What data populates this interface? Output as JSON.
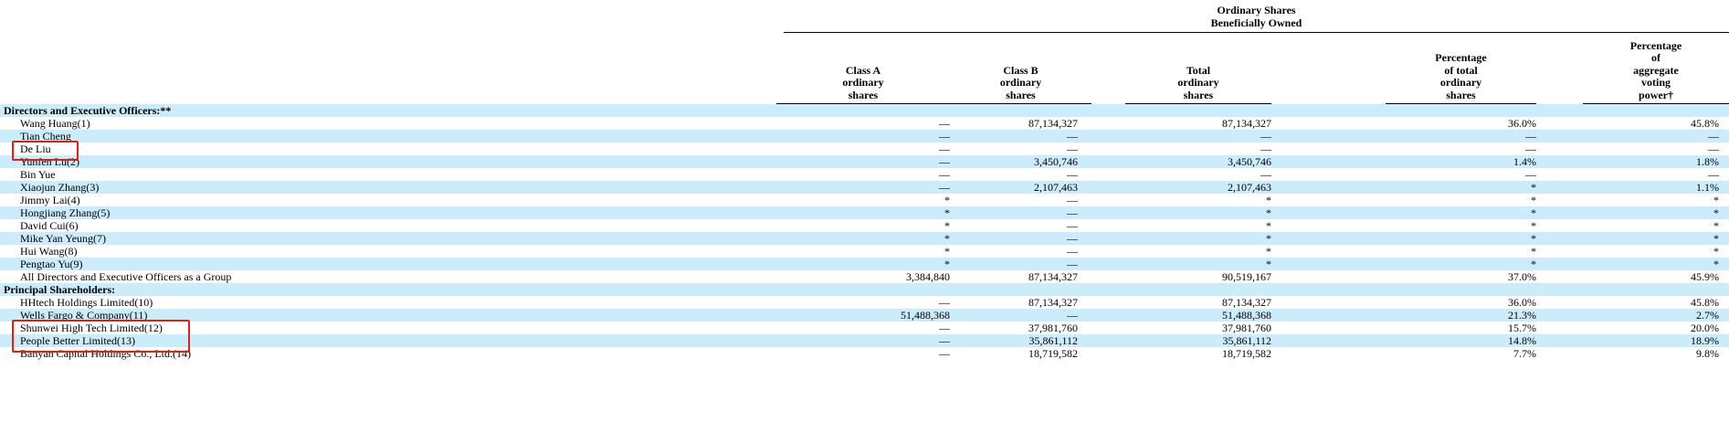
{
  "table": {
    "group_header": "Ordinary Shares\nBeneficially Owned",
    "columns": [
      "Class A\nordinary\nshares",
      "Class B\nordinary\nshares",
      "Total\nordinary\nshares",
      "Percentage\nof total\nordinary\nshares",
      "Percentage\nof\naggregate\nvoting\npower†"
    ],
    "rows": [
      {
        "name": "Directors and Executive Officers:**",
        "section": true,
        "highlighted": false,
        "cells": [
          "",
          "",
          "",
          "",
          ""
        ]
      },
      {
        "name": "Wang Huang(1)",
        "section": false,
        "highlighted": false,
        "cells": [
          "—",
          "87,134,327",
          "87,134,327",
          "36.0%",
          "45.8%"
        ]
      },
      {
        "name": "Tian Cheng",
        "section": false,
        "highlighted": false,
        "cells": [
          "—",
          "—",
          "—",
          "—",
          "—"
        ]
      },
      {
        "name": "De Liu",
        "section": false,
        "highlighted": true,
        "cells": [
          "—",
          "—",
          "—",
          "—",
          "—"
        ]
      },
      {
        "name": "Yunfen Lu(2)",
        "section": false,
        "highlighted": false,
        "cells": [
          "—",
          "3,450,746",
          "3,450,746",
          "1.4%",
          "1.8%"
        ]
      },
      {
        "name": "Bin Yue",
        "section": false,
        "highlighted": false,
        "cells": [
          "—",
          "—",
          "—",
          "—",
          "—"
        ]
      },
      {
        "name": "Xiaojun Zhang(3)",
        "section": false,
        "highlighted": false,
        "cells": [
          "—",
          "2,107,463",
          "2,107,463",
          "*",
          "1.1%"
        ]
      },
      {
        "name": "Jimmy Lai(4)",
        "section": false,
        "highlighted": false,
        "cells": [
          "*",
          "—",
          "*",
          "*",
          "*"
        ]
      },
      {
        "name": "Hongjiang Zhang(5)",
        "section": false,
        "highlighted": false,
        "cells": [
          "*",
          "—",
          "*",
          "*",
          "*"
        ]
      },
      {
        "name": "David Cui(6)",
        "section": false,
        "highlighted": false,
        "cells": [
          "*",
          "—",
          "*",
          "*",
          "*"
        ]
      },
      {
        "name": "Mike Yan Yeung(7)",
        "section": false,
        "highlighted": false,
        "cells": [
          "*",
          "—",
          "*",
          "*",
          "*"
        ]
      },
      {
        "name": "Hui Wang(8)",
        "section": false,
        "highlighted": false,
        "cells": [
          "*",
          "—",
          "*",
          "*",
          "*"
        ]
      },
      {
        "name": "Pengtao Yu(9)",
        "section": false,
        "highlighted": false,
        "cells": [
          "*",
          "—",
          "*",
          "*",
          "*"
        ]
      },
      {
        "name": "All Directors and Executive Officers as a Group",
        "section": false,
        "highlighted": false,
        "cells": [
          "3,384,840",
          "87,134,327",
          "90,519,167",
          "37.0%",
          "45.9%"
        ]
      },
      {
        "name": "Principal Shareholders:",
        "section": true,
        "highlighted": false,
        "cells": [
          "",
          "",
          "",
          "",
          ""
        ]
      },
      {
        "name": "HHtech Holdings Limited(10)",
        "section": false,
        "highlighted": false,
        "cells": [
          "—",
          "87,134,327",
          "87,134,327",
          "36.0%",
          "45.8%"
        ]
      },
      {
        "name": "Wells Fargo & Company(11)",
        "section": false,
        "highlighted": false,
        "cells": [
          "51,488,368",
          "—",
          "51,488,368",
          "21.3%",
          "2.7%"
        ]
      },
      {
        "name": "Shunwei High Tech Limited(12)",
        "section": false,
        "highlighted": true,
        "cells": [
          "—",
          "37,981,760",
          "37,981,760",
          "15.7%",
          "20.0%"
        ]
      },
      {
        "name": "People Better Limited(13)",
        "section": false,
        "highlighted": true,
        "cells": [
          "—",
          "35,861,112",
          "35,861,112",
          "14.8%",
          "18.9%"
        ]
      },
      {
        "name": "Banyan Capital Holdings Co., Ltd.(14)",
        "section": false,
        "highlighted": false,
        "cells": [
          "—",
          "18,719,582",
          "18,719,582",
          "7.7%",
          "9.8%"
        ]
      }
    ]
  },
  "annotations": {
    "highlighted_names": [
      "De Liu",
      "Shunwei High Tech Limited(12)",
      "People Better Limited(13)"
    ],
    "box_color": "#dd2211"
  },
  "colors": {
    "stripe_blue": "#cbecfa",
    "background": "#ffffff",
    "text": "#000000"
  }
}
